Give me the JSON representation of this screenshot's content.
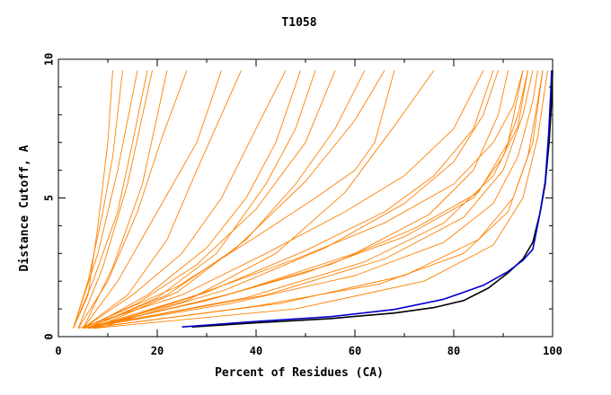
{
  "chart_data": {
    "type": "line",
    "title": "T1058",
    "xlabel": "Percent of Residues (CA)",
    "ylabel": "Distance Cutoff, A",
    "xlim": [
      0,
      100
    ],
    "ylim": [
      0,
      10
    ],
    "x_ticks": [
      "0",
      "20",
      "40",
      "60",
      "80",
      "100"
    ],
    "y_ticks": [
      "0",
      "5",
      "10"
    ],
    "grid": false,
    "legend": "none",
    "colors": {
      "bulk": "#ff8000",
      "black": "#000000",
      "blue": "#0000cc"
    },
    "series": [
      {
        "color": "#000000",
        "points": [
          [
            27,
            0.35
          ],
          [
            40,
            0.5
          ],
          [
            55,
            0.65
          ],
          [
            68,
            0.85
          ],
          [
            76,
            1.05
          ],
          [
            82,
            1.3
          ],
          [
            87,
            1.75
          ],
          [
            91,
            2.3
          ],
          [
            94,
            2.8
          ],
          [
            96,
            3.4
          ],
          [
            97.5,
            4.5
          ],
          [
            98.5,
            5.5
          ],
          [
            99.3,
            7.0
          ],
          [
            99.8,
            8.5
          ],
          [
            100,
            9.6
          ]
        ]
      },
      {
        "color": "#0000cc",
        "points": [
          [
            25,
            0.35
          ],
          [
            40,
            0.55
          ],
          [
            55,
            0.72
          ],
          [
            68,
            0.98
          ],
          [
            78,
            1.35
          ],
          [
            86,
            1.85
          ],
          [
            91,
            2.35
          ],
          [
            94,
            2.75
          ],
          [
            96,
            3.15
          ],
          [
            97.3,
            4.3
          ],
          [
            98.5,
            5.6
          ],
          [
            99.2,
            7.3
          ],
          [
            99.6,
            8.7
          ],
          [
            99.8,
            9.6
          ]
        ]
      },
      {
        "color": "#ff8000",
        "group": "steep",
        "points": [
          [
            3,
            0.3
          ],
          [
            6,
            2
          ],
          [
            9,
            4.5
          ],
          [
            11,
            6.5
          ],
          [
            13,
            9.6
          ]
        ]
      },
      {
        "color": "#ff8000",
        "group": "steep",
        "points": [
          [
            3,
            0.3
          ],
          [
            8,
            3
          ],
          [
            12,
            6
          ],
          [
            16,
            9.6
          ]
        ]
      },
      {
        "color": "#ff8000",
        "group": "steep",
        "points": [
          [
            4,
            0.3
          ],
          [
            9,
            2.5
          ],
          [
            14,
            5.5
          ],
          [
            19,
            9.6
          ]
        ]
      },
      {
        "color": "#ff8000",
        "group": "steep",
        "points": [
          [
            3,
            0.3
          ],
          [
            6,
            1.5
          ],
          [
            8,
            4
          ],
          [
            10,
            7
          ],
          [
            11,
            9.6
          ]
        ]
      },
      {
        "color": "#ff8000",
        "group": "steep",
        "points": [
          [
            5,
            0.3
          ],
          [
            11,
            2.5
          ],
          [
            17,
            5.5
          ],
          [
            22,
            9.6
          ]
        ]
      },
      {
        "color": "#ff8000",
        "group": "steep",
        "points": [
          [
            4,
            0.3
          ],
          [
            10,
            2
          ],
          [
            16,
            4.5
          ],
          [
            21,
            7.2
          ],
          [
            26,
            9.6
          ]
        ]
      },
      {
        "color": "#ff8000",
        "group": "steep",
        "points": [
          [
            3,
            0.3
          ],
          [
            7,
            2
          ],
          [
            12,
            4.5
          ],
          [
            15,
            7
          ],
          [
            18,
            9.6
          ]
        ]
      },
      {
        "color": "#ff8000",
        "group": "steep",
        "points": [
          [
            5,
            0.3
          ],
          [
            12,
            2
          ],
          [
            20,
            4.5
          ],
          [
            28,
            7
          ],
          [
            33,
            9.6
          ]
        ]
      },
      {
        "color": "#ff8000",
        "group": "mid",
        "points": [
          [
            5,
            0.3
          ],
          [
            15,
            1.5
          ],
          [
            25,
            3
          ],
          [
            33,
            5
          ],
          [
            40,
            7.5
          ],
          [
            46,
            9.6
          ]
        ]
      },
      {
        "color": "#ff8000",
        "group": "mid",
        "points": [
          [
            6,
            0.3
          ],
          [
            18,
            1.5
          ],
          [
            30,
            3.2
          ],
          [
            38,
            5
          ],
          [
            44,
            7
          ],
          [
            49,
            9.6
          ]
        ]
      },
      {
        "color": "#ff8000",
        "group": "mid",
        "points": [
          [
            5,
            0.3
          ],
          [
            16,
            1.2
          ],
          [
            28,
            2.6
          ],
          [
            40,
            4.6
          ],
          [
            50,
            7
          ],
          [
            56,
            9.6
          ]
        ]
      },
      {
        "color": "#ff8000",
        "group": "mid",
        "points": [
          [
            6,
            0.3
          ],
          [
            20,
            1.4
          ],
          [
            32,
            3
          ],
          [
            42,
            5.5
          ],
          [
            48,
            7.5
          ],
          [
            52,
            9.6
          ]
        ]
      },
      {
        "color": "#ff8000",
        "group": "mid",
        "points": [
          [
            5,
            0.3
          ],
          [
            14,
            1.5
          ],
          [
            22,
            3.5
          ],
          [
            28,
            6
          ],
          [
            33,
            8
          ],
          [
            37,
            9.6
          ]
        ]
      },
      {
        "color": "#ff8000",
        "group": "mid",
        "points": [
          [
            6,
            0.3
          ],
          [
            22,
            1.5
          ],
          [
            36,
            3.2
          ],
          [
            50,
            5.6
          ],
          [
            60,
            7.8
          ],
          [
            66,
            9.6
          ]
        ]
      },
      {
        "color": "#ff8000",
        "group": "mid",
        "points": [
          [
            7,
            0.3
          ],
          [
            24,
            1.6
          ],
          [
            38,
            3.5
          ],
          [
            48,
            5.5
          ],
          [
            56,
            7.5
          ],
          [
            62,
            9.6
          ]
        ]
      },
      {
        "color": "#ff8000",
        "group": "mid",
        "points": [
          [
            6,
            0.3
          ],
          [
            26,
            1.3
          ],
          [
            44,
            3
          ],
          [
            58,
            5.2
          ],
          [
            68,
            7.6
          ],
          [
            76,
            9.6
          ]
        ]
      },
      {
        "color": "#ff8000",
        "group": "shallow",
        "points": [
          [
            5,
            0.3
          ],
          [
            30,
            1.3
          ],
          [
            50,
            2.3
          ],
          [
            70,
            3.6
          ],
          [
            84,
            5
          ],
          [
            90,
            6.5
          ],
          [
            93,
            8
          ],
          [
            95,
            9.6
          ]
        ]
      },
      {
        "color": "#ff8000",
        "group": "shallow",
        "points": [
          [
            5,
            0.3
          ],
          [
            32,
            1.4
          ],
          [
            55,
            2.6
          ],
          [
            72,
            3.9
          ],
          [
            85,
            5.2
          ],
          [
            91,
            7
          ],
          [
            94,
            9.6
          ]
        ]
      },
      {
        "color": "#ff8000",
        "group": "shallow",
        "points": [
          [
            6,
            0.3
          ],
          [
            28,
            1.5
          ],
          [
            48,
            2.8
          ],
          [
            66,
            4.1
          ],
          [
            80,
            5.5
          ],
          [
            88,
            7
          ],
          [
            92,
            8.3
          ],
          [
            94,
            9.6
          ]
        ]
      },
      {
        "color": "#ff8000",
        "group": "shallow",
        "points": [
          [
            5,
            0.3
          ],
          [
            35,
            1.2
          ],
          [
            60,
            2.2
          ],
          [
            78,
            3.4
          ],
          [
            88,
            4.8
          ],
          [
            93,
            6.5
          ],
          [
            96,
            8.5
          ],
          [
            97,
            9.6
          ]
        ]
      },
      {
        "color": "#ff8000",
        "group": "shallow",
        "points": [
          [
            7,
            0.3
          ],
          [
            30,
            1.6
          ],
          [
            50,
            3.1
          ],
          [
            66,
            4.5
          ],
          [
            76,
            5.8
          ],
          [
            84,
            7.5
          ],
          [
            88,
            9.6
          ]
        ]
      },
      {
        "color": "#ff8000",
        "group": "shallow",
        "points": [
          [
            6,
            0.3
          ],
          [
            40,
            1.1
          ],
          [
            65,
            1.9
          ],
          [
            82,
            3
          ],
          [
            91,
            4.5
          ],
          [
            95,
            6.5
          ],
          [
            97,
            8.5
          ],
          [
            98,
            9.6
          ]
        ]
      },
      {
        "color": "#ff8000",
        "group": "shallow",
        "points": [
          [
            8,
            0.3
          ],
          [
            34,
            1.7
          ],
          [
            54,
            3.2
          ],
          [
            70,
            4.8
          ],
          [
            80,
            6.3
          ],
          [
            86,
            8
          ],
          [
            89,
            9.6
          ]
        ]
      },
      {
        "color": "#ff8000",
        "group": "shallow",
        "points": [
          [
            4,
            0.3
          ],
          [
            25,
            1.5
          ],
          [
            42,
            3
          ],
          [
            58,
            4.5
          ],
          [
            70,
            5.8
          ],
          [
            80,
            7.5
          ],
          [
            86,
            9.6
          ]
        ]
      },
      {
        "color": "#ff8000",
        "group": "shallow",
        "points": [
          [
            6,
            0.3
          ],
          [
            45,
            1.2
          ],
          [
            70,
            2.2
          ],
          [
            85,
            3.5
          ],
          [
            92,
            5
          ],
          [
            96,
            7
          ],
          [
            98,
            9.6
          ]
        ]
      },
      {
        "color": "#ff8000",
        "group": "shallow",
        "points": [
          [
            5,
            0.3
          ],
          [
            38,
            1.4
          ],
          [
            62,
            2.7
          ],
          [
            78,
            4.1
          ],
          [
            88,
            5.8
          ],
          [
            93,
            7.6
          ],
          [
            95,
            9.6
          ]
        ]
      },
      {
        "color": "#ff8000",
        "group": "shallow",
        "points": [
          [
            7,
            0.3
          ],
          [
            48,
            1.0
          ],
          [
            74,
            2.0
          ],
          [
            88,
            3.3
          ],
          [
            94,
            5
          ],
          [
            97,
            7.2
          ],
          [
            99,
            9.6
          ]
        ]
      },
      {
        "color": "#ff8000",
        "group": "shallow",
        "points": [
          [
            5,
            0.3
          ],
          [
            24,
            1.8
          ],
          [
            40,
            3.6
          ],
          [
            52,
            5
          ],
          [
            60,
            6
          ],
          [
            64,
            7
          ],
          [
            68,
            9.6
          ]
        ]
      },
      {
        "color": "#ff8000",
        "group": "shallow",
        "points": [
          [
            6,
            0.3
          ],
          [
            36,
            1.6
          ],
          [
            60,
            3
          ],
          [
            75,
            4.4
          ],
          [
            84,
            6
          ],
          [
            89,
            8
          ],
          [
            91,
            9.6
          ]
        ]
      },
      {
        "color": "#ff8000",
        "group": "shallow",
        "points": [
          [
            5,
            0.3
          ],
          [
            42,
            1.5
          ],
          [
            66,
            2.8
          ],
          [
            82,
            4.3
          ],
          [
            90,
            6
          ],
          [
            94,
            8
          ],
          [
            96,
            9.6
          ]
        ]
      }
    ]
  }
}
